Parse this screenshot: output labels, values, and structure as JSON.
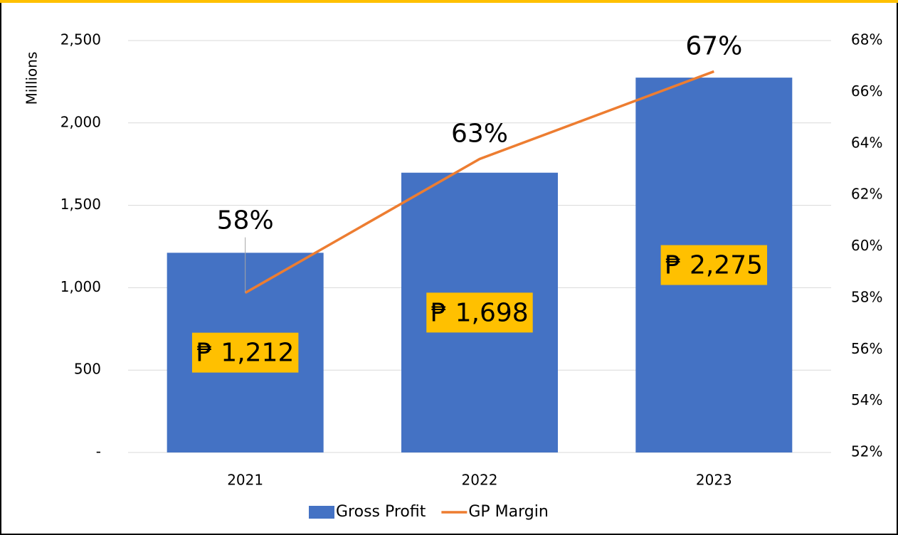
{
  "chart_data": {
    "type": "combo",
    "ylabel": "Millions",
    "categories": [
      "2021",
      "2022",
      "2023"
    ],
    "series": [
      {
        "name": "Gross Profit",
        "type": "bar",
        "color": "#4472c4",
        "values": [
          1212,
          1698,
          2275
        ],
        "value_labels": [
          "₱ 1,212",
          "₱ 1,698",
          "₱ 2,275"
        ],
        "label_background": "#ffc000"
      },
      {
        "name": "GP Margin",
        "type": "line",
        "axis": "y2",
        "color": "#ed7d31",
        "values": [
          58.2,
          63.4,
          66.8
        ],
        "value_labels": [
          "58%",
          "63%",
          "67%"
        ]
      }
    ],
    "ylim": [
      0,
      2500
    ],
    "yticks": [
      {
        "value": 0,
        "label": "-"
      },
      500,
      {
        "value": 1000,
        "label": "1,000"
      },
      {
        "value": 1500,
        "label": "1,500"
      },
      {
        "value": 2000,
        "label": "2,000"
      },
      {
        "value": 2500,
        "label": "2,500"
      }
    ],
    "y2lim": [
      52,
      68
    ],
    "y2ticks": [
      {
        "value": 52,
        "label": "52%"
      },
      {
        "value": 54,
        "label": "54%"
      },
      {
        "value": 56,
        "label": "56%"
      },
      {
        "value": 58,
        "label": "58%"
      },
      {
        "value": 60,
        "label": "60%"
      },
      {
        "value": 62,
        "label": "62%"
      },
      {
        "value": 64,
        "label": "64%"
      },
      {
        "value": 66,
        "label": "66%"
      },
      {
        "value": 68,
        "label": "68%"
      }
    ],
    "grid": true,
    "legend": "bottom"
  }
}
